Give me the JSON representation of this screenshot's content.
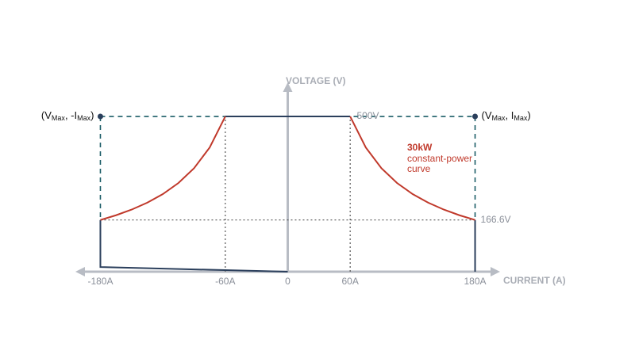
{
  "chart_data": {
    "type": "line",
    "x_label": "CURRENT (A)",
    "y_label": "VOLTAGE (V)",
    "xlim": [
      -204,
      204
    ],
    "ylim": [
      0,
      620
    ],
    "xticks": [
      {
        "value": -180,
        "label": "-180A"
      },
      {
        "value": -60,
        "label": "-60A"
      },
      0,
      {
        "value": 60,
        "label": "60A"
      },
      {
        "value": 180,
        "label": "180A"
      }
    ],
    "yticks": [
      {
        "value": 500,
        "label": "500V"
      },
      {
        "value": 166.6,
        "label": "166.6V"
      }
    ],
    "series": [
      {
        "color": "#2b3f5c",
        "x": [
          -180,
          -180,
          0
        ],
        "values": [
          166.6,
          15,
          0
        ]
      },
      {
        "color": "#2b3f5c",
        "x": [
          -60,
          60
        ],
        "values": [
          500,
          500
        ]
      },
      {
        "color": "#2b3f5c",
        "x": [
          180,
          180
        ],
        "values": [
          166.6,
          0
        ]
      },
      {
        "color": "#c0392b",
        "x": [
          -180,
          -165,
          -150,
          -135,
          -120,
          -105,
          -90,
          -75,
          -60
        ],
        "values": [
          166.6,
          181.8,
          200,
          222.2,
          250,
          285.7,
          333.3,
          400,
          500
        ]
      },
      {
        "color": "#c0392b",
        "x": [
          60,
          75,
          90,
          105,
          120,
          135,
          150,
          165,
          180
        ],
        "values": [
          500,
          400,
          333.3,
          285.7,
          250,
          222.2,
          200,
          181.8,
          166.6
        ]
      }
    ],
    "corner_labels": [
      {
        "parts": [
          "(V",
          "Max",
          ", -I",
          "Max",
          ")"
        ]
      },
      {
        "parts": [
          "(V",
          "Max",
          ", I",
          "Max",
          ")"
        ]
      }
    ],
    "annotation": {
      "title": "30kW",
      "lines": [
        "constant-power",
        "curve"
      ],
      "color": "#c0392b"
    }
  }
}
